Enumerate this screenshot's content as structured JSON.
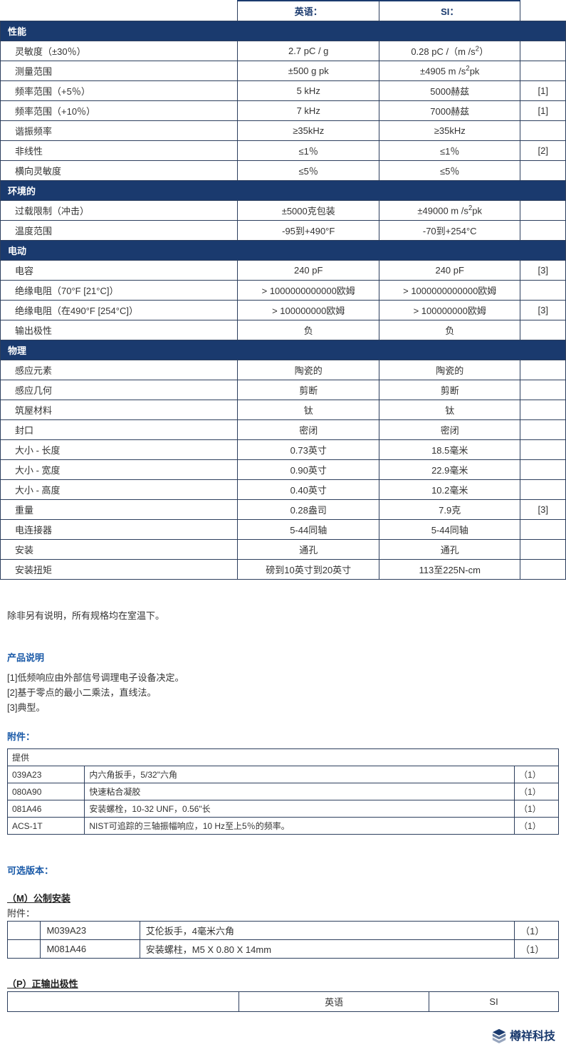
{
  "colors": {
    "header_bg": "#1a3a6e",
    "header_fg": "#ffffff",
    "border": "#2c3e5d",
    "link": "#1a5aa8",
    "text": "#333333"
  },
  "col_headers": {
    "en": "英语：",
    "si": "SI："
  },
  "sections": [
    {
      "title": "性能",
      "rows": [
        {
          "label": "灵敏度（±30％）",
          "en": "2.7 pC / g",
          "si_html": "0.28 pC /（m /s<sup>2</sup>）",
          "note": ""
        },
        {
          "label": "测量范围",
          "en": "±500 g pk",
          "si_html": "±4905 m /s<sup>2</sup>pk",
          "note": ""
        },
        {
          "label": "频率范围（+5％）",
          "en": "5 kHz",
          "si": "5000赫兹",
          "note": "[1]"
        },
        {
          "label": "频率范围（+10％）",
          "en": "7 kHz",
          "si": "7000赫兹",
          "note": "[1]"
        },
        {
          "label": "谐振频率",
          "en": "≥35kHz",
          "si": "≥35kHz",
          "note": ""
        },
        {
          "label": "非线性",
          "en": "≤1％",
          "si": "≤1％",
          "note": "[2]"
        },
        {
          "label": "横向灵敏度",
          "en": "≤5％",
          "si": "≤5％",
          "note": ""
        }
      ]
    },
    {
      "title": "环境的",
      "rows": [
        {
          "label": "过载限制（冲击）",
          "en": "±5000克包装",
          "si_html": "±49000 m /s<sup>2</sup>pk",
          "note": ""
        },
        {
          "label": "温度范围",
          "en": "-95到+490°F",
          "si": "-70到+254°C",
          "note": ""
        }
      ]
    },
    {
      "title": "电动",
      "rows": [
        {
          "label": "电容",
          "en": "240 pF",
          "si": "240 pF",
          "note": "[3]"
        },
        {
          "label": "绝缘电阻（70°F [21°C]）",
          "en": "> 1000000000000欧姆",
          "si": "> 1000000000000欧姆",
          "note": ""
        },
        {
          "label": "绝缘电阻（在490°F [254°C]）",
          "en": "> 100000000欧姆",
          "si": "> 100000000欧姆",
          "note": "[3]"
        },
        {
          "label": "输出极性",
          "en": "负",
          "si": "负",
          "note": ""
        }
      ]
    },
    {
      "title": "物理",
      "rows": [
        {
          "label": "感应元素",
          "en": "陶瓷的",
          "si": "陶瓷的",
          "note": ""
        },
        {
          "label": "感应几何",
          "en": "剪断",
          "si": "剪断",
          "note": ""
        },
        {
          "label": "筑屋材料",
          "en": "钛",
          "si": "钛",
          "note": ""
        },
        {
          "label": "封口",
          "en": "密闭",
          "si": "密闭",
          "note": ""
        },
        {
          "label": "大小 - 长度",
          "en": "0.73英寸",
          "si": "18.5毫米",
          "note": ""
        },
        {
          "label": "大小 - 宽度",
          "en": "0.90英寸",
          "si": "22.9毫米",
          "note": ""
        },
        {
          "label": "大小 - 高度",
          "en": "0.40英寸",
          "si": "10.2毫米",
          "note": ""
        },
        {
          "label": "重量",
          "en": "0.28盎司",
          "si": "7.9克",
          "note": "[3]"
        },
        {
          "label": "电连接器",
          "en": "5-44同轴",
          "si": "5-44同轴",
          "note": ""
        },
        {
          "label": "安装",
          "en": "通孔",
          "si": "通孔",
          "note": ""
        },
        {
          "label": "安装扭矩",
          "en": "磅到10英寸到20英寸",
          "si": "113至225N-cm",
          "note": ""
        }
      ]
    }
  ],
  "room_temp_note": "除非另有说明，所有规格均在室温下。",
  "product_notes_title": "产品说明",
  "product_notes": [
    "[1]低频响应由外部信号调理电子设备决定。",
    "[2]基于零点的最小二乘法，直线法。",
    "[3]典型。"
  ],
  "accessories_title": "附件：",
  "accessories_header": "提供",
  "accessories": [
    {
      "code": "039A23",
      "desc": "内六角扳手，5/32\"六角",
      "qty": "（1）"
    },
    {
      "code": "080A90",
      "desc": "快速粘合凝胶",
      "qty": "（1）"
    },
    {
      "code": "081A46",
      "desc": "安装螺栓，10-32 UNF，0.56\"长",
      "qty": "（1）"
    },
    {
      "code": "ACS-1T",
      "desc": "NIST可追踪的三轴振幅响应，10 Hz至上5％的频率。",
      "qty": "（1）"
    }
  ],
  "optional_title": "可选版本：",
  "variant_m": {
    "title": "（M）公制安装",
    "sub": "附件：",
    "rows": [
      {
        "code": "M039A23",
        "desc": "艾伦扳手，4毫米六角",
        "qty": "（1）"
      },
      {
        "code": "M081A46",
        "desc": "安装螺柱，M5 X 0.80 X 14mm",
        "qty": "（1）"
      }
    ]
  },
  "variant_p": {
    "title": "（P）正输出极性",
    "cols": {
      "en": "英语",
      "si": "SI"
    }
  },
  "footer": "樽祥科技"
}
